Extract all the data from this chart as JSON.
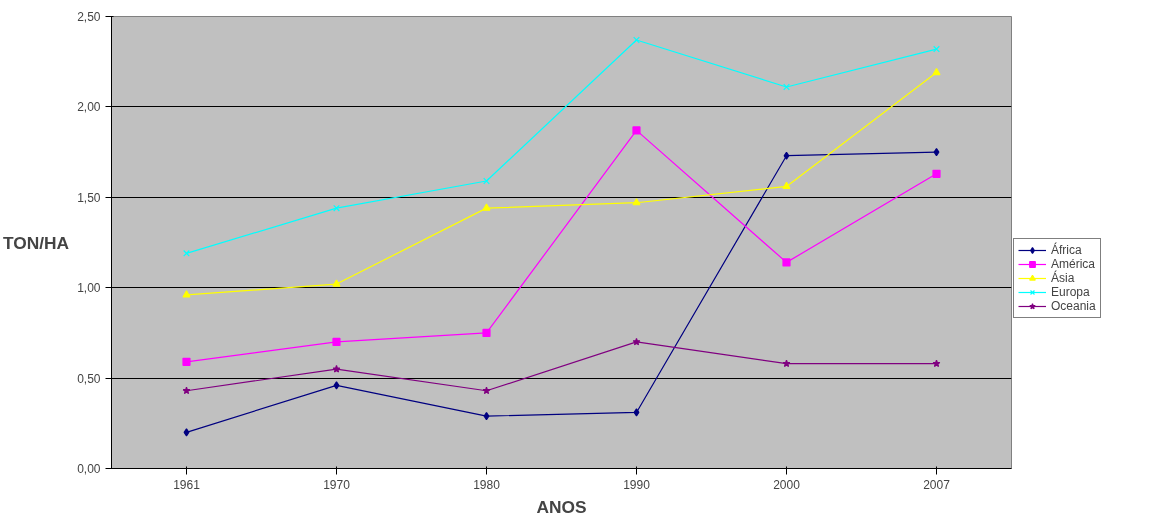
{
  "chart_data": {
    "type": "line",
    "xlabel": "ANOS",
    "ylabel": "TON/HA",
    "categories": [
      "1961",
      "1970",
      "1980",
      "1990",
      "2000",
      "2007"
    ],
    "ylim": [
      0,
      2.5
    ],
    "yticks": [
      {
        "value": 0,
        "label": "0,00"
      },
      {
        "value": 0.5,
        "label": "0,50"
      },
      {
        "value": 1,
        "label": "1,00"
      },
      {
        "value": 1.5,
        "label": "1,50"
      },
      {
        "value": 2,
        "label": "2,00"
      },
      {
        "value": 2.5,
        "label": "2,50"
      }
    ],
    "grid": "y",
    "legend": "right",
    "line_style": "solid",
    "series": [
      {
        "name": "África",
        "color": "#000080",
        "marker": "diamond",
        "values": [
          0.2,
          0.46,
          0.29,
          0.31,
          1.73,
          1.75
        ]
      },
      {
        "name": "América",
        "color": "#ff00ff",
        "marker": "square",
        "values": [
          0.59,
          0.7,
          0.75,
          1.87,
          1.14,
          1.63
        ]
      },
      {
        "name": "Ásia",
        "color": "#ffff00",
        "marker": "triangle",
        "values": [
          0.96,
          1.02,
          1.44,
          1.47,
          1.56,
          2.19
        ]
      },
      {
        "name": "Europa",
        "color": "#00ffff",
        "marker": "cross",
        "values": [
          1.19,
          1.44,
          1.59,
          2.37,
          2.11,
          2.32
        ]
      },
      {
        "name": "Oceania",
        "color": "#800080",
        "marker": "star",
        "values": [
          0.43,
          0.55,
          0.43,
          0.7,
          0.58,
          0.58
        ]
      }
    ]
  }
}
